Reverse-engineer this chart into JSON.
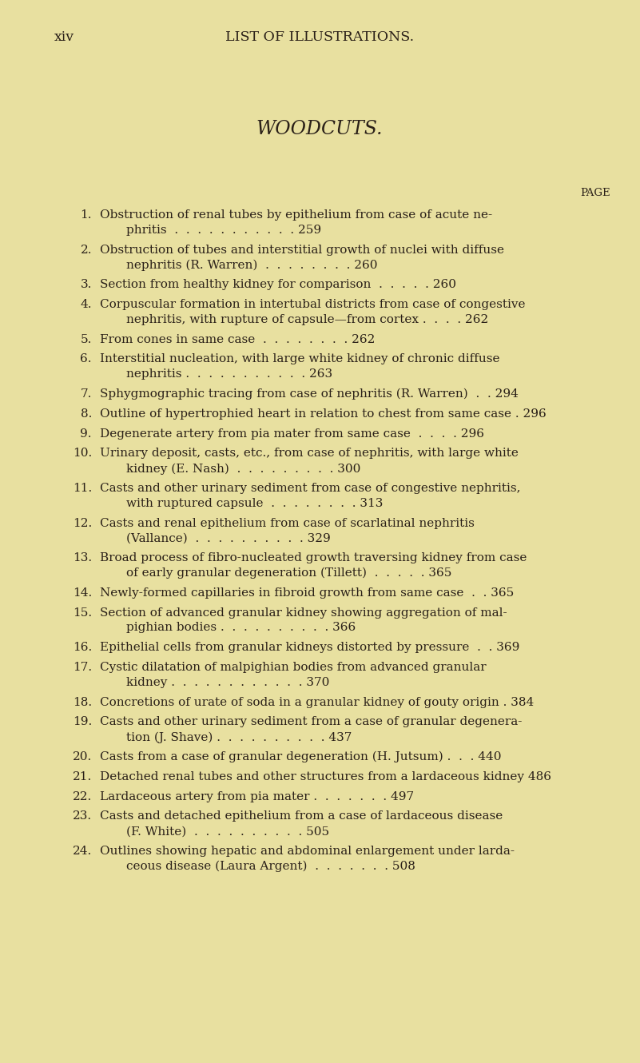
{
  "background_color": "#e8e0a0",
  "header_left": "xiv",
  "header_center": "LIST OF ILLUSTRATIONS.",
  "title": "WOODCUTS.",
  "page_label": "PAGE",
  "entries": [
    {
      "num": "1.",
      "line1": "Obstruction of renal tubes by epithelium from case of acute ne-",
      "line2": "phritis  .  .  .  .  .  .  .  .  .  .  . 259",
      "two_line": true
    },
    {
      "num": "2.",
      "line1": "Obstruction of tubes and interstitial growth of nuclei with diffuse",
      "line2": "nephritis (R. Warren)  .  .  .  .  .  .  .  . 260",
      "two_line": true
    },
    {
      "num": "3.",
      "line1": "Section from healthy kidney for comparison  .  .  .  .  . 260",
      "line2": "",
      "two_line": false
    },
    {
      "num": "4.",
      "line1": "Corpuscular formation in intertubal districts from case of congestive",
      "line2": "nephritis, with rupture of capsule—from cortex .  .  .  . 262",
      "two_line": true
    },
    {
      "num": "5.",
      "line1": "From cones in same case  .  .  .  .  .  .  .  . 262",
      "line2": "",
      "two_line": false
    },
    {
      "num": "6.",
      "line1": "Interstitial nucleation, with large white kidney of chronic diffuse",
      "line2": "nephritis .  .  .  .  .  .  .  .  .  .  . 263",
      "two_line": true
    },
    {
      "num": "7.",
      "line1": "Sphygmographic tracing from case of nephritis (R. Warren)  .  . 294",
      "line2": "",
      "two_line": false
    },
    {
      "num": "8.",
      "line1": "Outline of hypertrophied heart in relation to chest from same case . 296",
      "line2": "",
      "two_line": false
    },
    {
      "num": "9.",
      "line1": "Degenerate artery from pia mater from same case  .  .  .  . 296",
      "line2": "",
      "two_line": false
    },
    {
      "num": "10.",
      "line1": "Urinary deposit, casts, etc., from case of nephritis, with large white",
      "line2": "kidney (E. Nash)  .  .  .  .  .  .  .  .  . 300",
      "two_line": true
    },
    {
      "num": "11.",
      "line1": "Casts and other urinary sediment from case of congestive nephritis,",
      "line2": "with ruptured capsule  .  .  .  .  .  .  .  . 313",
      "two_line": true
    },
    {
      "num": "12.",
      "line1": "Casts and renal epithelium from case of scarlatinal nephritis",
      "line2": "(Vallance)  .  .  .  .  .  .  .  .  .  . 329",
      "two_line": true
    },
    {
      "num": "13.",
      "line1": "Broad process of fibro-nucleated growth traversing kidney from case",
      "line2": "of early granular degeneration (Tillett)  .  .  .  .  . 365",
      "two_line": true
    },
    {
      "num": "14.",
      "line1": "Newly-formed capillaries in fibroid growth from same case  .  . 365",
      "line2": "",
      "two_line": false
    },
    {
      "num": "15.",
      "line1": "Section of advanced granular kidney showing aggregation of mal-",
      "line2": "pighian bodies .  .  .  .  .  .  .  .  .  . 366",
      "two_line": true
    },
    {
      "num": "16.",
      "line1": "Epithelial cells from granular kidneys distorted by pressure  .  . 369",
      "line2": "",
      "two_line": false
    },
    {
      "num": "17.",
      "line1": "Cystic dilatation of malpighian bodies from advanced granular",
      "line2": "kidney .  .  .  .  .  .  .  .  .  .  .  . 370",
      "two_line": true
    },
    {
      "num": "18.",
      "line1": "Concretions of urate of soda in a granular kidney of gouty origin . 384",
      "line2": "",
      "two_line": false
    },
    {
      "num": "19.",
      "line1": "Casts and other urinary sediment from a case of granular degenera-",
      "line2": "tion (J. Shave) .  .  .  .  .  .  .  .  .  . 437",
      "two_line": true
    },
    {
      "num": "20.",
      "line1": "Casts from a case of granular degeneration (H. Jutsum) .  .  . 440",
      "line2": "",
      "two_line": false
    },
    {
      "num": "21.",
      "line1": "Detached renal tubes and other structures from a lardaceous kidney 486",
      "line2": "",
      "two_line": false
    },
    {
      "num": "22.",
      "line1": "Lardaceous artery from pia mater .  .  .  .  .  .  . 497",
      "line2": "",
      "two_line": false
    },
    {
      "num": "23.",
      "line1": "Casts and detached epithelium from a case of lardaceous disease",
      "line2": "(F. White)  .  .  .  .  .  .  .  .  .  . 505",
      "two_line": true
    },
    {
      "num": "24.",
      "line1": "Outlines showing hepatic and abdominal enlargement under larda-",
      "line2": "ceous disease (Laura Argent)  .  .  .  .  .  .  . 508",
      "two_line": true
    }
  ],
  "text_color": "#2a2018",
  "header_fontsize": 12.5,
  "title_fontsize": 17,
  "body_fontsize": 11.0,
  "page_label_fontsize": 9.5
}
